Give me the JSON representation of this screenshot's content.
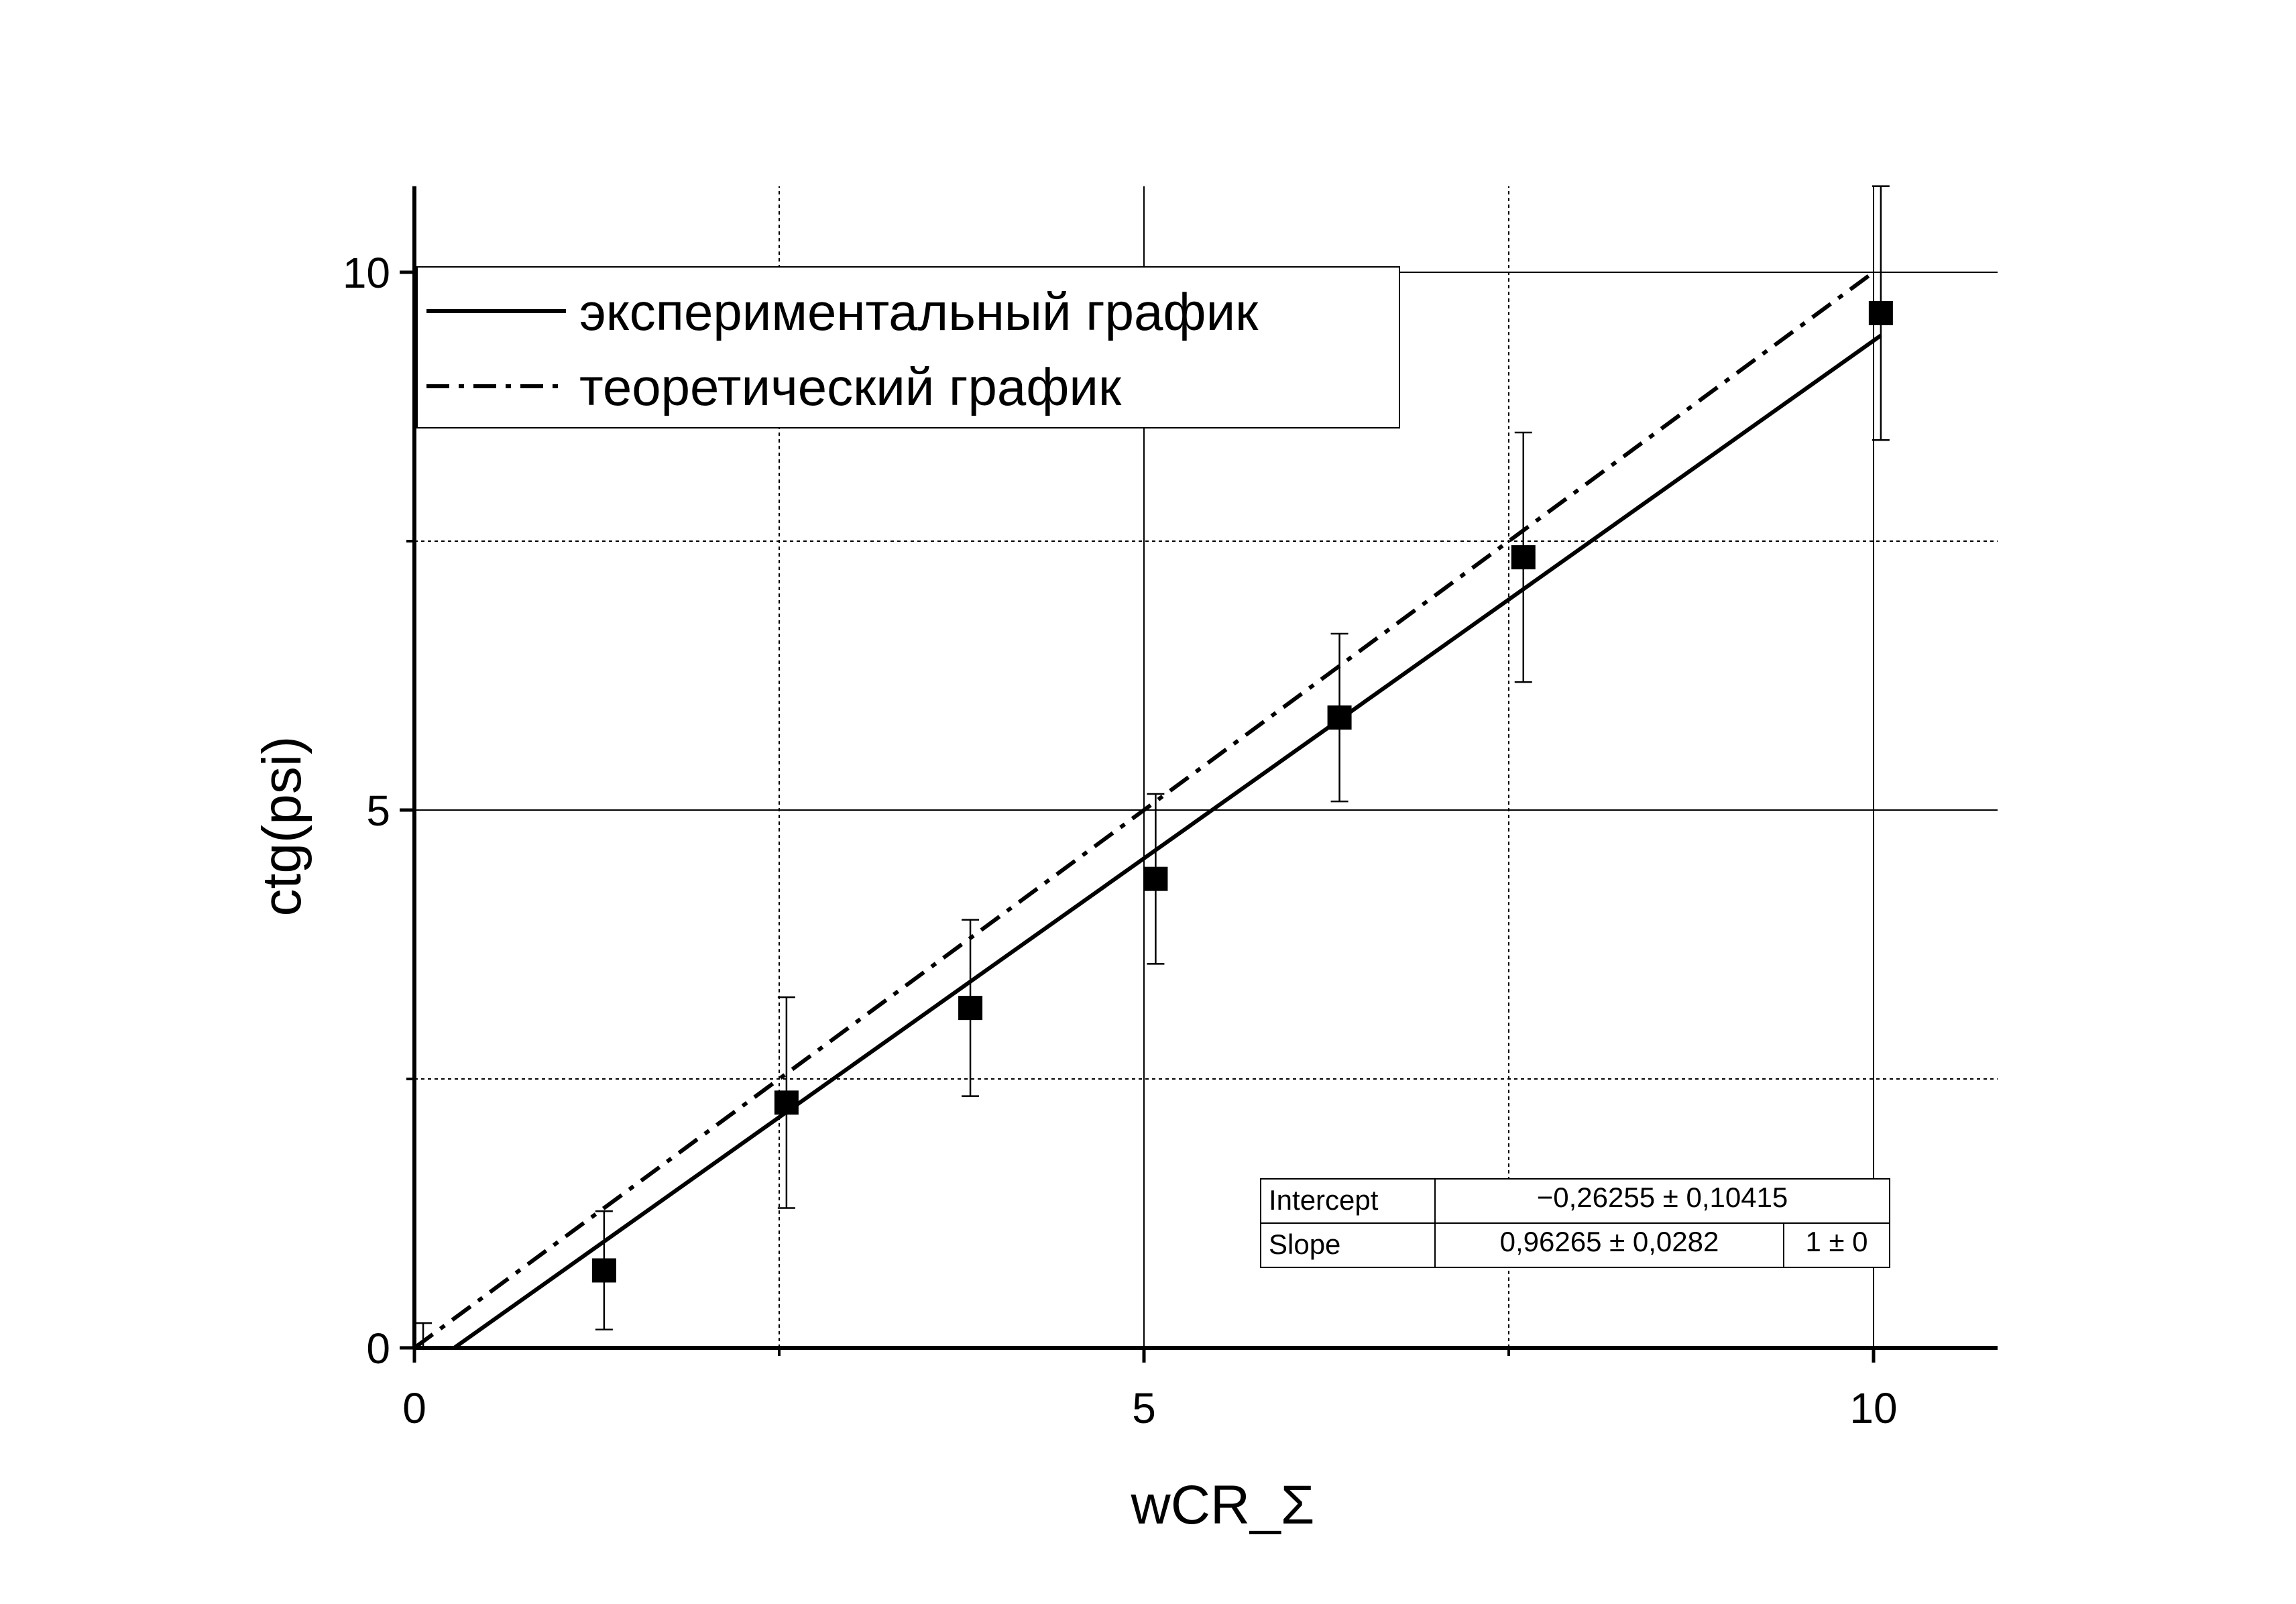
{
  "chart_data": {
    "type": "scatter",
    "xlabel": "wCR_Σ",
    "ylabel": "ctg(psi)",
    "xlim": [
      0,
      10.85
    ],
    "ylim": [
      0,
      10.8
    ],
    "x_ticks": [
      0,
      5,
      10
    ],
    "x_tick_labels": [
      "0",
      "5",
      "10"
    ],
    "y_ticks": [
      0,
      5,
      10
    ],
    "y_tick_labels": [
      "0",
      "5",
      "10"
    ],
    "x_minor_gridlines": [
      2.5,
      7.5
    ],
    "y_minor_gridlines": [
      2.5,
      7.5
    ],
    "grid": true,
    "legend_position": "top-left",
    "legend": [
      {
        "label": "экспериментальный график",
        "style": "solid"
      },
      {
        "label": "теоретический график",
        "style": "dash-dot"
      }
    ],
    "series": [
      {
        "type": "scatter",
        "marker": "square",
        "points": [
          {
            "x": 1.3,
            "y": 0.72,
            "err": 0.55
          },
          {
            "x": 2.55,
            "y": 2.28,
            "err": 0.98
          },
          {
            "x": 3.81,
            "y": 3.16,
            "err": 0.82
          },
          {
            "x": 5.08,
            "y": 4.36,
            "err": 0.79
          },
          {
            "x": 6.34,
            "y": 5.86,
            "err": 0.78
          },
          {
            "x": 7.6,
            "y": 7.35,
            "err": 1.16
          },
          {
            "x": 10.05,
            "y": 9.62,
            "err": 1.18
          },
          {
            "x": 0.06,
            "y": 0.0,
            "err": 0.23
          }
        ]
      },
      {
        "type": "line",
        "style": "solid",
        "role": "fit",
        "intercept": -0.26255,
        "slope": 0.96265,
        "x_range": [
          0.27,
          10.05
        ]
      },
      {
        "type": "line",
        "style": "dash-dot",
        "role": "theory",
        "intercept": 0,
        "slope": 1,
        "x_range": [
          0,
          10
        ]
      }
    ],
    "stats_table": {
      "rows": [
        {
          "label": "Intercept",
          "value": "−0,26255 ± 0,10415",
          "extra": ""
        },
        {
          "label": "Slope",
          "value": "0,96265 ± 0,0282",
          "extra": "1 ± 0"
        }
      ]
    },
    "colors": {
      "ink": "#000000",
      "background": "#ffffff"
    }
  }
}
